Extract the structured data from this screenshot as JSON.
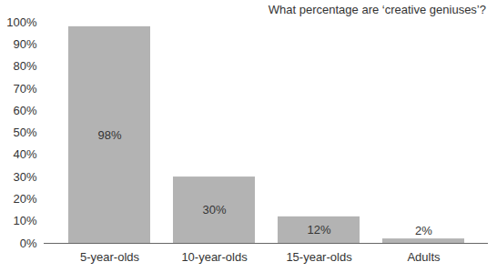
{
  "chart_data": {
    "type": "bar",
    "title": "What percentage are ‘creative geniuses’?",
    "categories": [
      "5-year-olds",
      "10-year-olds",
      "15-year-olds",
      "Adults"
    ],
    "values": [
      98,
      30,
      12,
      2
    ],
    "value_labels": [
      "98%",
      "30%",
      "12%",
      "2%"
    ],
    "color": "#b3b3b3",
    "ylim": [
      0,
      100
    ],
    "yticks": [
      {
        "value": 0,
        "label": "0%"
      },
      {
        "value": 10,
        "label": "10%"
      },
      {
        "value": 20,
        "label": "20%"
      },
      {
        "value": 30,
        "label": "30%"
      },
      {
        "value": 40,
        "label": "40%"
      },
      {
        "value": 50,
        "label": "50%"
      },
      {
        "value": 60,
        "label": "60%"
      },
      {
        "value": 70,
        "label": "70%"
      },
      {
        "value": 80,
        "label": "80%"
      },
      {
        "value": 90,
        "label": "90%"
      },
      {
        "value": 100,
        "label": "100%"
      }
    ],
    "grid": false,
    "data_labels": true
  }
}
